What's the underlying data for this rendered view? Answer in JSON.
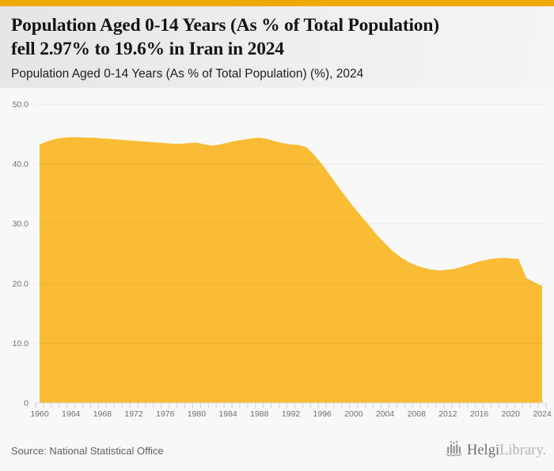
{
  "page": {
    "accent_color": "#F0A802",
    "background_color": "#F8F8F8"
  },
  "header": {
    "title_lines": [
      "Population Aged 0-14 Years (As % of Total Population)",
      "fell 2.97% to 19.6% in Iran in 2024"
    ],
    "subtitle": "Population Aged 0-14 Years (As % of Total Population) (%), 2024"
  },
  "footer": {
    "source": "Source: National Statistical Office",
    "logo": {
      "icon": "helgi-bars-logo-icon",
      "name_primary": "Helgi",
      "name_secondary": "Library."
    }
  },
  "chart_data": {
    "type": "area",
    "title": "Population Aged 0-14 Years (As % of Total Population) (%), 2024",
    "xlabel": "",
    "ylabel": "",
    "grid": true,
    "legend": false,
    "ylim": [
      0,
      50
    ],
    "yticks": [
      0,
      10,
      20,
      30,
      40,
      50
    ],
    "ytick_labels": [
      "0",
      "10.0",
      "20.0",
      "30.0",
      "40.0",
      "50.0"
    ],
    "xtick_years": [
      1960,
      1964,
      1968,
      1972,
      1976,
      1980,
      1984,
      1988,
      1992,
      1996,
      2000,
      2004,
      2008,
      2012,
      2016,
      2020,
      2024
    ],
    "series": [
      {
        "name": "Population Aged 0-14 Years (As % of Total Population)",
        "color": "#F9BC34",
        "x": [
          1960,
          1961,
          1962,
          1963,
          1964,
          1965,
          1966,
          1967,
          1968,
          1969,
          1970,
          1971,
          1972,
          1973,
          1974,
          1975,
          1976,
          1977,
          1978,
          1979,
          1980,
          1981,
          1982,
          1983,
          1984,
          1985,
          1986,
          1987,
          1988,
          1989,
          1990,
          1991,
          1992,
          1993,
          1994,
          1995,
          1996,
          1997,
          1998,
          1999,
          2000,
          2001,
          2002,
          2003,
          2004,
          2005,
          2006,
          2007,
          2008,
          2009,
          2010,
          2011,
          2012,
          2013,
          2014,
          2015,
          2016,
          2017,
          2018,
          2019,
          2020,
          2021,
          2022,
          2023,
          2024
        ],
        "values": [
          43.3,
          43.8,
          44.2,
          44.4,
          44.5,
          44.5,
          44.4,
          44.4,
          44.3,
          44.2,
          44.1,
          44.0,
          43.9,
          43.8,
          43.7,
          43.6,
          43.5,
          43.4,
          43.4,
          43.5,
          43.6,
          43.3,
          43.1,
          43.3,
          43.6,
          43.9,
          44.1,
          44.3,
          44.4,
          44.2,
          43.8,
          43.5,
          43.3,
          43.2,
          42.8,
          41.5,
          39.9,
          38.1,
          36.3,
          34.5,
          32.8,
          31.2,
          29.7,
          28.1,
          26.7,
          25.4,
          24.4,
          23.6,
          23.0,
          22.6,
          22.3,
          22.2,
          22.3,
          22.5,
          22.9,
          23.3,
          23.7,
          24.0,
          24.2,
          24.3,
          24.2,
          24.1,
          20.9,
          20.2,
          19.6
        ]
      }
    ],
    "styles": {
      "gridline_color": "rgba(0,0,0,0.055)",
      "axis_line_color": "#d9dee5",
      "tick_color": "#c9d2e0",
      "label_color": "#6e6e6e"
    }
  }
}
